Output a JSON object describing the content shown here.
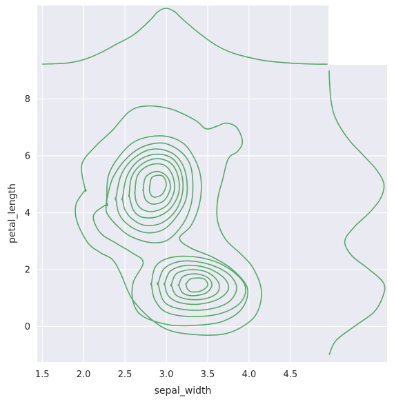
{
  "chart_data": {
    "type": "kde-jointplot",
    "xlabel": "sepal_width",
    "ylabel": "petal_length",
    "xlim": [
      1.44,
      4.96
    ],
    "ylim": [
      -1.25,
      9.2
    ],
    "xticks": [
      1.5,
      2.0,
      2.5,
      3.0,
      3.5,
      4.0,
      4.5
    ],
    "xtick_labels": [
      "1.5",
      "2.0",
      "2.5",
      "3.0",
      "3.5",
      "4.0",
      "4.5"
    ],
    "yticks": [
      0,
      2,
      4,
      6,
      8
    ],
    "ytick_labels": [
      "0",
      "2",
      "4",
      "6",
      "8"
    ],
    "grid": true,
    "background": "#eaeaf2",
    "line_color": "#55a868",
    "joint_kde_contours": [
      {
        "level": 1,
        "points": [
          [
            2.02,
            4.8
          ],
          [
            1.98,
            5.7
          ],
          [
            2.15,
            6.35
          ],
          [
            2.35,
            6.9
          ],
          [
            2.55,
            7.55
          ],
          [
            2.75,
            7.75
          ],
          [
            3.05,
            7.65
          ],
          [
            3.35,
            7.25
          ],
          [
            3.48,
            6.95
          ],
          [
            3.62,
            7.05
          ],
          [
            3.72,
            7.15
          ],
          [
            3.85,
            7.0
          ],
          [
            3.92,
            6.5
          ],
          [
            3.86,
            6.15
          ],
          [
            3.75,
            5.9
          ],
          [
            3.68,
            5.15
          ],
          [
            3.62,
            4.45
          ],
          [
            3.62,
            3.7
          ],
          [
            3.72,
            3.05
          ],
          [
            3.9,
            2.55
          ],
          [
            4.05,
            2.05
          ],
          [
            4.15,
            1.25
          ],
          [
            4.1,
            0.5
          ],
          [
            3.95,
            0.05
          ],
          [
            3.72,
            -0.25
          ],
          [
            3.42,
            -0.3
          ],
          [
            3.05,
            -0.15
          ],
          [
            2.8,
            0.3
          ],
          [
            2.58,
            1.0
          ],
          [
            2.45,
            1.85
          ],
          [
            2.35,
            2.35
          ],
          [
            2.2,
            2.6
          ],
          [
            2.05,
            2.95
          ],
          [
            1.92,
            3.7
          ],
          [
            1.91,
            4.3
          ],
          [
            2.02,
            4.8
          ]
        ]
      },
      {
        "level": 2,
        "points": [
          [
            2.28,
            4.3
          ],
          [
            2.3,
            5.3
          ],
          [
            2.45,
            6.05
          ],
          [
            2.65,
            6.55
          ],
          [
            2.95,
            6.7
          ],
          [
            3.2,
            6.45
          ],
          [
            3.35,
            5.85
          ],
          [
            3.42,
            5.15
          ],
          [
            3.4,
            4.3
          ],
          [
            3.3,
            3.55
          ],
          [
            3.16,
            3.1
          ],
          [
            3.3,
            2.75
          ],
          [
            3.55,
            2.45
          ],
          [
            3.8,
            2.0
          ],
          [
            3.98,
            1.35
          ],
          [
            3.92,
            0.65
          ],
          [
            3.7,
            0.2
          ],
          [
            3.4,
            0.05
          ],
          [
            3.05,
            0.05
          ],
          [
            2.72,
            0.35
          ],
          [
            2.6,
            0.85
          ],
          [
            2.6,
            1.55
          ],
          [
            2.72,
            2.25
          ],
          [
            2.58,
            2.6
          ],
          [
            2.38,
            2.95
          ],
          [
            2.2,
            3.3
          ],
          [
            2.12,
            3.9
          ],
          [
            2.28,
            4.3
          ]
        ]
      },
      {
        "level": 3,
        "points": [
          [
            2.28,
            4.45
          ],
          [
            2.35,
            5.2
          ],
          [
            2.5,
            5.85
          ],
          [
            2.7,
            6.3
          ],
          [
            2.95,
            6.45
          ],
          [
            3.15,
            6.2
          ],
          [
            3.28,
            5.75
          ],
          [
            3.32,
            5.1
          ],
          [
            3.3,
            4.3
          ],
          [
            3.2,
            3.6
          ],
          [
            3.02,
            3.05
          ],
          [
            2.82,
            2.95
          ],
          [
            2.58,
            3.15
          ],
          [
            2.42,
            3.5
          ],
          [
            2.28,
            4.0
          ],
          [
            2.28,
            4.45
          ]
        ]
      },
      {
        "level": 4,
        "points": [
          [
            2.39,
            4.5
          ],
          [
            2.45,
            5.3
          ],
          [
            2.58,
            5.85
          ],
          [
            2.78,
            6.2
          ],
          [
            2.98,
            6.2
          ],
          [
            3.15,
            5.9
          ],
          [
            3.24,
            5.3
          ],
          [
            3.24,
            4.5
          ],
          [
            3.12,
            3.85
          ],
          [
            2.96,
            3.4
          ],
          [
            2.75,
            3.3
          ],
          [
            2.55,
            3.55
          ],
          [
            2.43,
            3.95
          ],
          [
            2.39,
            4.5
          ]
        ]
      },
      {
        "level": 5,
        "points": [
          [
            2.47,
            4.5
          ],
          [
            2.52,
            5.25
          ],
          [
            2.65,
            5.8
          ],
          [
            2.85,
            6.05
          ],
          [
            3.05,
            5.95
          ],
          [
            3.17,
            5.5
          ],
          [
            3.2,
            4.8
          ],
          [
            3.12,
            4.1
          ],
          [
            2.95,
            3.65
          ],
          [
            2.75,
            3.55
          ],
          [
            2.6,
            3.75
          ],
          [
            2.5,
            4.1
          ],
          [
            2.47,
            4.5
          ]
        ]
      },
      {
        "level": 6,
        "points": [
          [
            2.55,
            4.6
          ],
          [
            2.58,
            5.25
          ],
          [
            2.7,
            5.7
          ],
          [
            2.88,
            5.9
          ],
          [
            3.05,
            5.75
          ],
          [
            3.14,
            5.3
          ],
          [
            3.15,
            4.7
          ],
          [
            3.05,
            4.15
          ],
          [
            2.88,
            3.85
          ],
          [
            2.7,
            3.85
          ],
          [
            2.6,
            4.1
          ],
          [
            2.55,
            4.6
          ]
        ]
      },
      {
        "level": 7,
        "points": [
          [
            2.62,
            4.7
          ],
          [
            2.65,
            5.3
          ],
          [
            2.78,
            5.65
          ],
          [
            2.95,
            5.7
          ],
          [
            3.06,
            5.4
          ],
          [
            3.1,
            4.85
          ],
          [
            3.02,
            4.3
          ],
          [
            2.86,
            4.05
          ],
          [
            2.72,
            4.1
          ],
          [
            2.64,
            4.35
          ],
          [
            2.62,
            4.7
          ]
        ]
      },
      {
        "level": 8,
        "points": [
          [
            2.72,
            4.8
          ],
          [
            2.75,
            5.25
          ],
          [
            2.88,
            5.45
          ],
          [
            3.0,
            5.3
          ],
          [
            3.05,
            4.9
          ],
          [
            2.98,
            4.45
          ],
          [
            2.85,
            4.3
          ],
          [
            2.75,
            4.45
          ],
          [
            2.72,
            4.8
          ]
        ]
      },
      {
        "level": 9,
        "points": [
          [
            2.8,
            4.95
          ],
          [
            2.83,
            5.25
          ],
          [
            2.95,
            5.3
          ],
          [
            3.0,
            5.0
          ],
          [
            2.95,
            4.65
          ],
          [
            2.85,
            4.55
          ],
          [
            2.8,
            4.72
          ],
          [
            2.8,
            4.95
          ]
        ]
      },
      {
        "level": 3,
        "points": [
          [
            2.82,
            1.5
          ],
          [
            2.88,
            2.15
          ],
          [
            3.1,
            2.45
          ],
          [
            3.45,
            2.4
          ],
          [
            3.75,
            2.05
          ],
          [
            3.95,
            1.45
          ],
          [
            3.9,
            0.85
          ],
          [
            3.65,
            0.45
          ],
          [
            3.3,
            0.35
          ],
          [
            3.0,
            0.5
          ],
          [
            2.86,
            0.95
          ],
          [
            2.82,
            1.5
          ]
        ]
      },
      {
        "level": 4,
        "points": [
          [
            2.9,
            1.5
          ],
          [
            2.98,
            2.05
          ],
          [
            3.2,
            2.3
          ],
          [
            3.5,
            2.2
          ],
          [
            3.75,
            1.85
          ],
          [
            3.85,
            1.35
          ],
          [
            3.75,
            0.85
          ],
          [
            3.5,
            0.6
          ],
          [
            3.2,
            0.6
          ],
          [
            2.98,
            0.85
          ],
          [
            2.9,
            1.5
          ]
        ]
      },
      {
        "level": 5,
        "points": [
          [
            2.98,
            1.5
          ],
          [
            3.05,
            1.95
          ],
          [
            3.25,
            2.15
          ],
          [
            3.5,
            2.05
          ],
          [
            3.7,
            1.7
          ],
          [
            3.75,
            1.3
          ],
          [
            3.62,
            0.95
          ],
          [
            3.38,
            0.78
          ],
          [
            3.15,
            0.85
          ],
          [
            3.02,
            1.1
          ],
          [
            2.98,
            1.5
          ]
        ]
      },
      {
        "level": 6,
        "points": [
          [
            3.06,
            1.45
          ],
          [
            3.12,
            1.85
          ],
          [
            3.3,
            2.0
          ],
          [
            3.5,
            1.9
          ],
          [
            3.63,
            1.55
          ],
          [
            3.62,
            1.2
          ],
          [
            3.48,
            0.98
          ],
          [
            3.28,
            0.95
          ],
          [
            3.12,
            1.1
          ],
          [
            3.06,
            1.45
          ]
        ]
      },
      {
        "level": 7,
        "points": [
          [
            3.15,
            1.45
          ],
          [
            3.2,
            1.75
          ],
          [
            3.35,
            1.85
          ],
          [
            3.5,
            1.72
          ],
          [
            3.55,
            1.45
          ],
          [
            3.48,
            1.18
          ],
          [
            3.32,
            1.08
          ],
          [
            3.2,
            1.18
          ],
          [
            3.15,
            1.45
          ]
        ]
      },
      {
        "level": 8,
        "points": [
          [
            3.24,
            1.5
          ],
          [
            3.3,
            1.68
          ],
          [
            3.45,
            1.68
          ],
          [
            3.5,
            1.45
          ],
          [
            3.42,
            1.25
          ],
          [
            3.3,
            1.22
          ],
          [
            3.25,
            1.35
          ],
          [
            3.24,
            1.5
          ]
        ]
      }
    ],
    "marginal_x_density": {
      "x": [
        1.5,
        1.8,
        2.0,
        2.2,
        2.4,
        2.6,
        2.8,
        2.9,
        3.0,
        3.1,
        3.2,
        3.4,
        3.6,
        3.8,
        4.0,
        4.2,
        4.4,
        4.6,
        4.8,
        4.95
      ],
      "density": [
        0.0,
        0.02,
        0.08,
        0.2,
        0.36,
        0.52,
        0.78,
        0.94,
        1.0,
        0.94,
        0.8,
        0.55,
        0.34,
        0.2,
        0.12,
        0.06,
        0.03,
        0.01,
        0.0,
        0.0
      ]
    },
    "marginal_y_density": {
      "y": [
        -1.0,
        -0.5,
        0.0,
        0.5,
        1.0,
        1.5,
        2.0,
        2.5,
        3.0,
        3.5,
        4.0,
        4.5,
        5.0,
        5.5,
        6.0,
        6.5,
        7.0,
        7.5,
        8.0,
        8.5,
        9.0
      ],
      "density": [
        0.0,
        0.12,
        0.45,
        0.8,
        0.95,
        0.98,
        0.72,
        0.4,
        0.28,
        0.45,
        0.72,
        0.92,
        0.98,
        0.85,
        0.62,
        0.38,
        0.2,
        0.08,
        0.03,
        0.01,
        0.0
      ]
    }
  }
}
